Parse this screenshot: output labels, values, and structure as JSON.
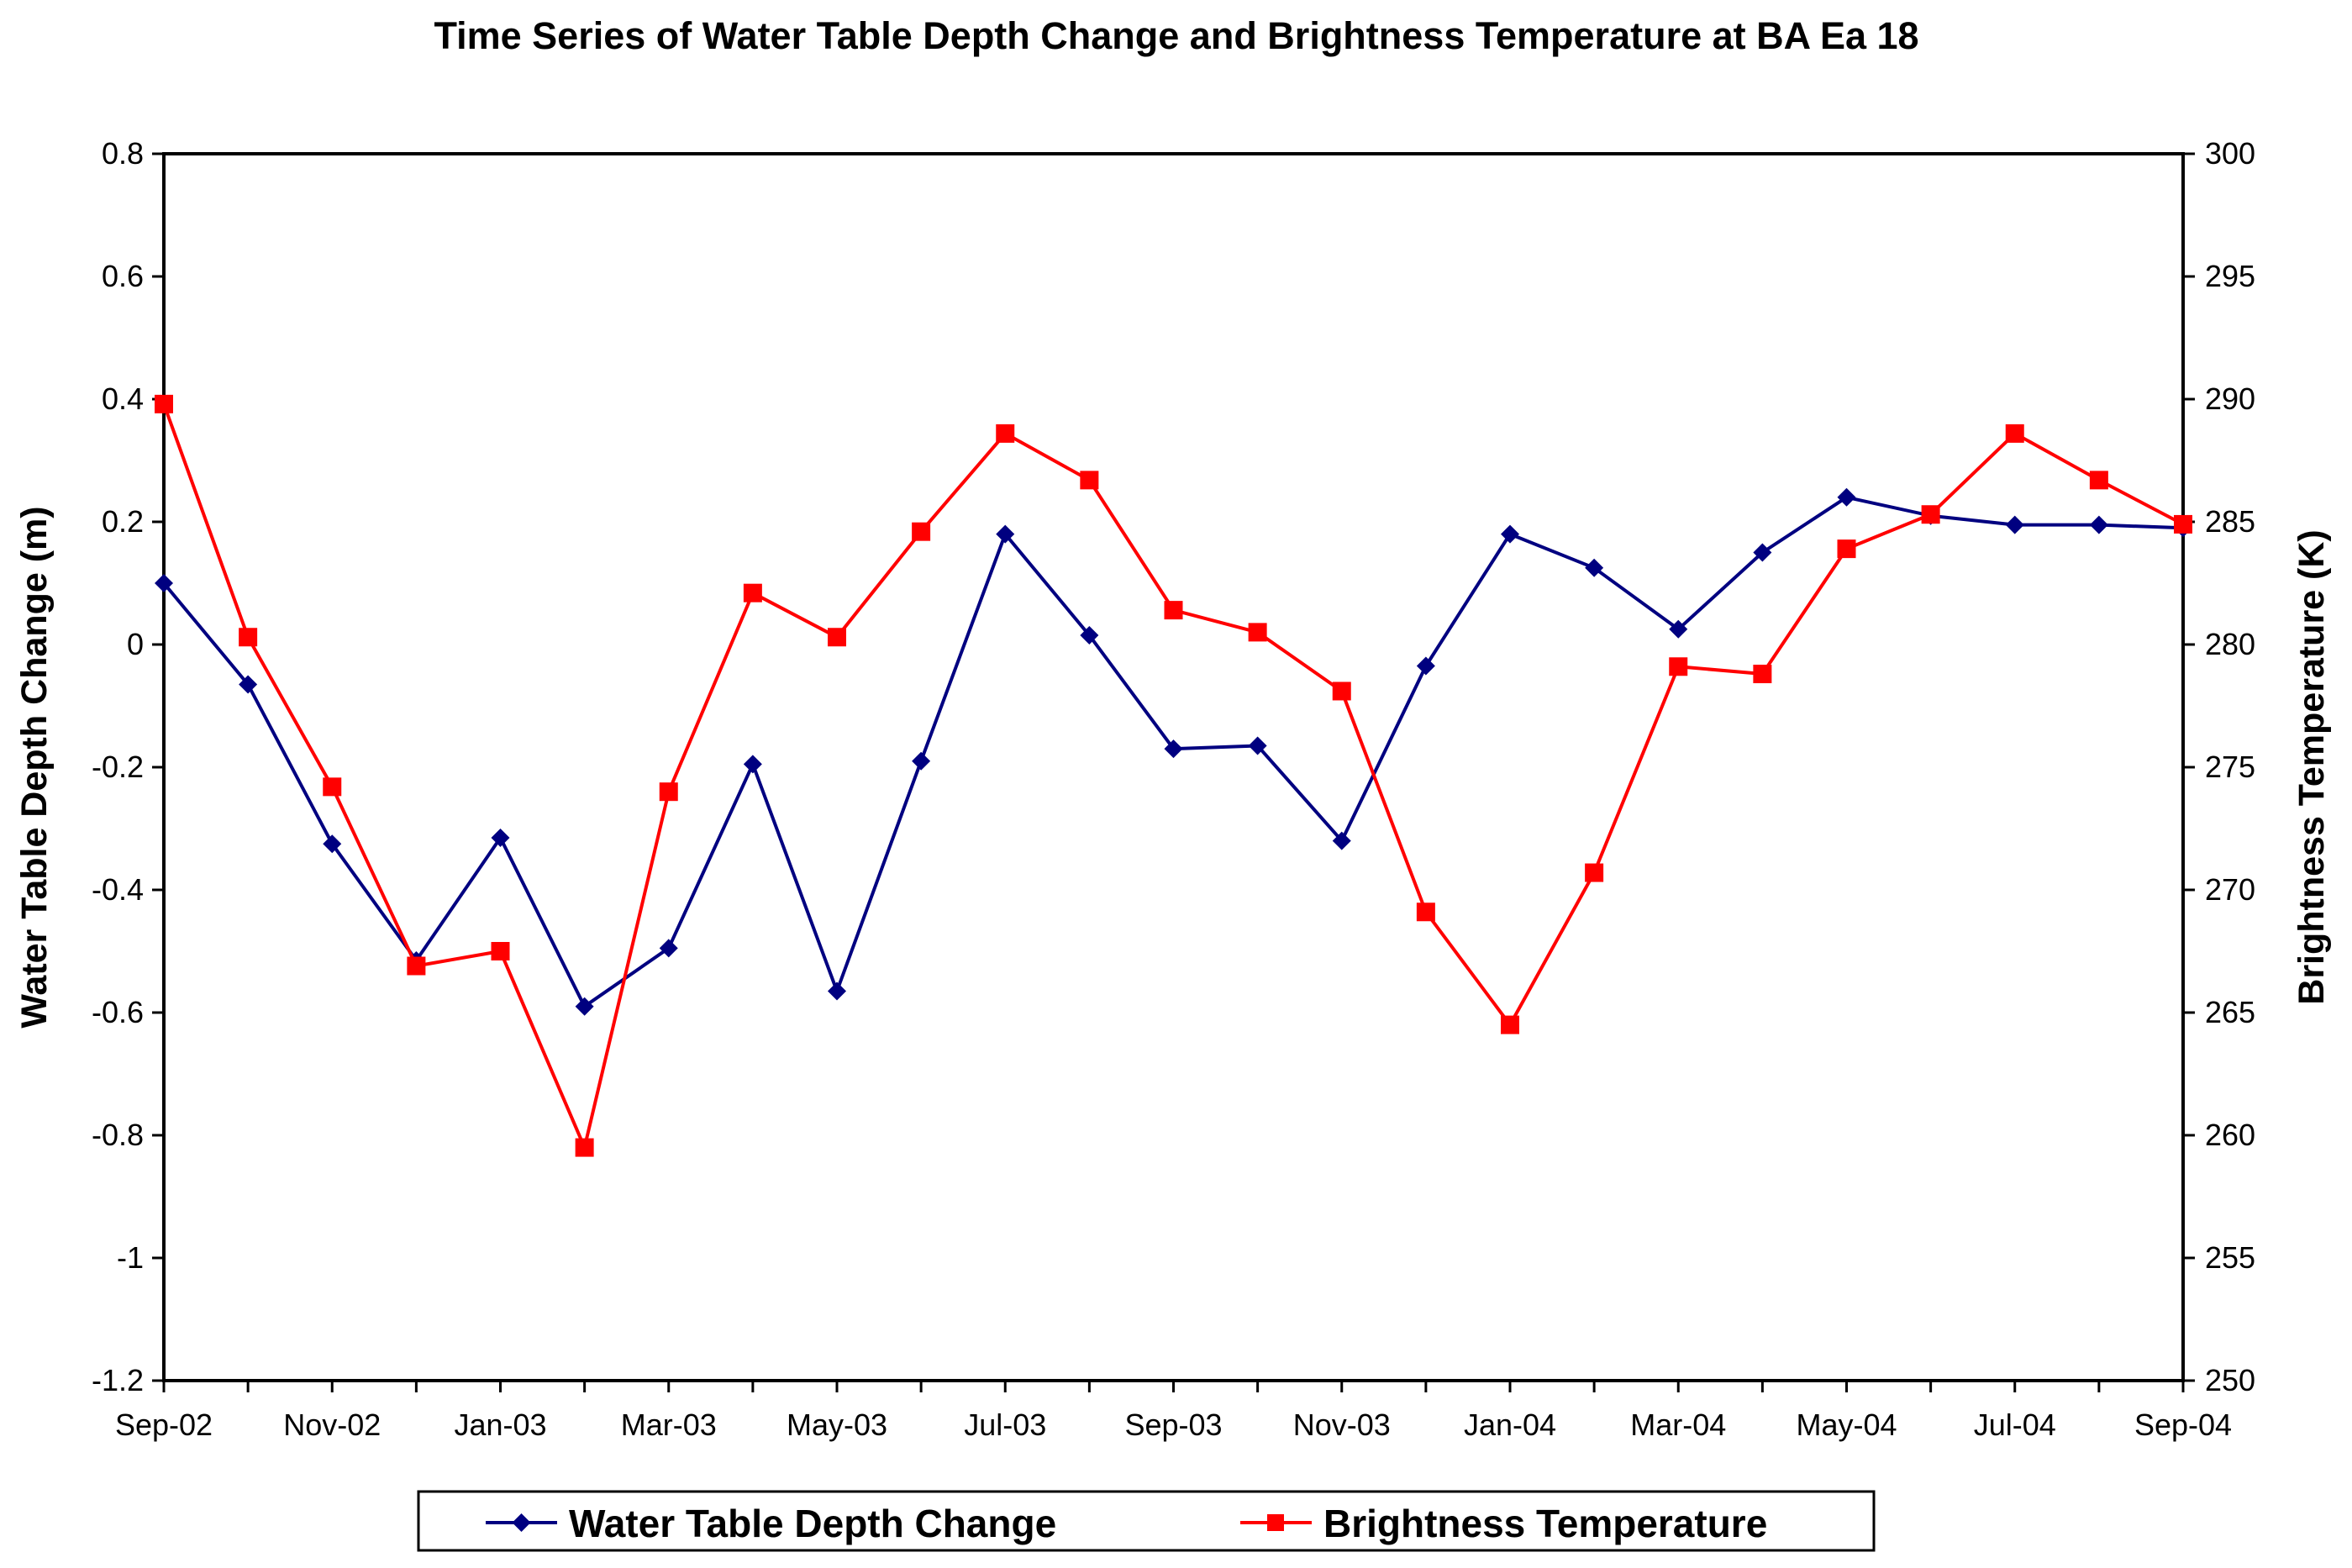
{
  "chart_data": {
    "type": "line",
    "title": "Time Series of Water Table Depth Change and Brightness Temperature at BA Ea 18",
    "x_tick_labels": [
      "Sep-02",
      "Nov-02",
      "Jan-03",
      "Mar-03",
      "May-03",
      "Jul-03",
      "Sep-03",
      "Nov-03",
      "Jan-04",
      "Mar-04",
      "May-04",
      "Jul-04",
      "Sep-04"
    ],
    "x_count": 25,
    "y_left": {
      "label": "Water Table Depth Change (m)",
      "min": -1.2,
      "max": 0.8,
      "step": 0.2,
      "tick_labels": [
        "0.8",
        "0.6",
        "0.4",
        "0.2",
        "0",
        "-0.2",
        "-0.4",
        "-0.6",
        "-0.8",
        "-1",
        "-1.2"
      ]
    },
    "y_right": {
      "label": "Brightness Temperature (K)",
      "min": 250,
      "max": 300,
      "step": 5,
      "tick_labels": [
        "300",
        "295",
        "290",
        "285",
        "280",
        "275",
        "270",
        "265",
        "260",
        "255",
        "250"
      ]
    },
    "series": [
      {
        "name": "Water Table Depth Change",
        "axis": "left",
        "color": "#000080",
        "marker": "diamond",
        "values": [
          0.1,
          -0.065,
          -0.325,
          -0.515,
          -0.315,
          -0.59,
          -0.495,
          -0.195,
          -0.565,
          -0.19,
          0.18,
          0.015,
          -0.17,
          -0.165,
          -0.32,
          -0.035,
          0.18,
          0.125,
          0.025,
          0.15,
          0.24,
          0.21,
          0.195,
          0.195,
          0.19
        ]
      },
      {
        "name": "Brightness Temperature",
        "axis": "right",
        "color": "#FF0000",
        "marker": "square",
        "values": [
          289.8,
          280.3,
          274.2,
          266.9,
          267.5,
          259.5,
          274.0,
          282.1,
          280.3,
          284.6,
          288.6,
          286.7,
          281.4,
          280.5,
          278.1,
          269.1,
          264.5,
          270.7,
          279.1,
          278.8,
          283.9,
          285.3,
          288.6,
          286.7,
          284.9
        ]
      }
    ],
    "legend_position": "bottom-center",
    "grid": false
  }
}
